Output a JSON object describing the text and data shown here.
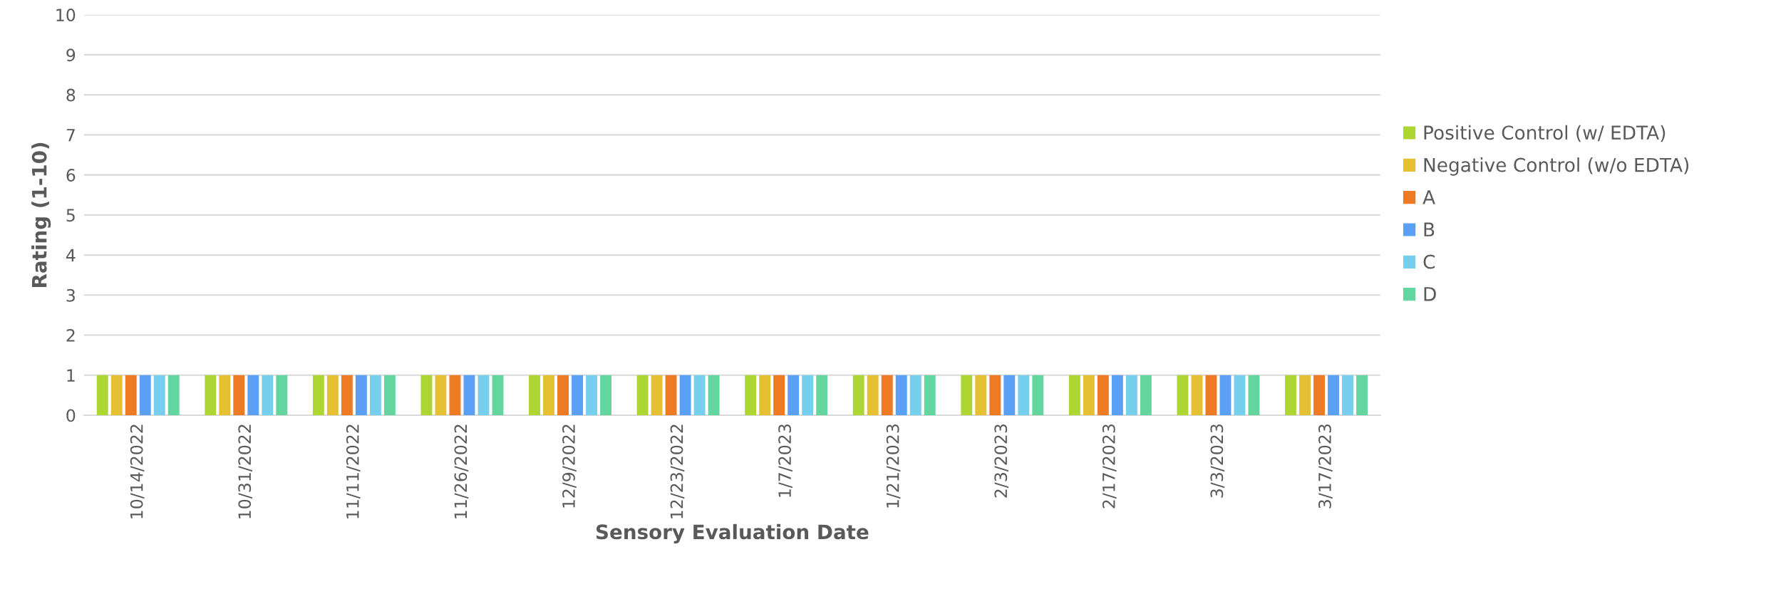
{
  "chart_data": {
    "type": "bar",
    "xlabel": "Sensory Evaluation Date",
    "ylabel": "Rating (1-10)",
    "categories": [
      "10/14/2022",
      "10/31/2022",
      "11/11/2022",
      "11/26/2022",
      "12/9/2022",
      "12/23/2022",
      "1/7/2023",
      "1/21/2023",
      "2/3/2023",
      "2/17/2023",
      "3/3/2023",
      "3/17/2023"
    ],
    "series": [
      {
        "name": "Positive Control (w/ EDTA)",
        "color": "#add633",
        "values": [
          1,
          1,
          1,
          1,
          1,
          1,
          1,
          1,
          1,
          1,
          1,
          1
        ]
      },
      {
        "name": "Negative Control (w/o EDTA)",
        "color": "#e5c033",
        "values": [
          1,
          1,
          1,
          1,
          1,
          1,
          1,
          1,
          1,
          1,
          1,
          1
        ]
      },
      {
        "name": "A",
        "color": "#ee7a24",
        "values": [
          1,
          1,
          1,
          1,
          1,
          1,
          1,
          1,
          1,
          1,
          1,
          1
        ]
      },
      {
        "name": "B",
        "color": "#5aa0f5",
        "values": [
          1,
          1,
          1,
          1,
          1,
          1,
          1,
          1,
          1,
          1,
          1,
          1
        ]
      },
      {
        "name": "C",
        "color": "#76cfec",
        "values": [
          1,
          1,
          1,
          1,
          1,
          1,
          1,
          1,
          1,
          1,
          1,
          1
        ]
      },
      {
        "name": "D",
        "color": "#63d6a0",
        "values": [
          1,
          1,
          1,
          1,
          1,
          1,
          1,
          1,
          1,
          1,
          1,
          1
        ]
      }
    ],
    "ylim": [
      0,
      10
    ],
    "yticks": [
      0,
      1,
      2,
      3,
      4,
      5,
      6,
      7,
      8,
      9,
      10
    ],
    "grid": "y",
    "legend": "right"
  }
}
